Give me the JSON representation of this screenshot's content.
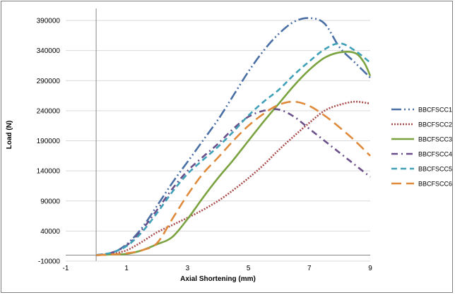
{
  "chart_data": {
    "type": "line",
    "title": "",
    "xlabel": "Axial Shortening (mm)",
    "ylabel": "Load (N)",
    "xlim": [
      -1,
      9
    ],
    "ylim": [
      -10000,
      410000
    ],
    "x_ticks": [
      -1,
      1,
      3,
      5,
      7,
      9
    ],
    "x_tick_labels": [
      "-1",
      "1",
      "3",
      "5",
      "7",
      "9"
    ],
    "y_ticks": [
      -10000,
      40000,
      90000,
      140000,
      190000,
      240000,
      290000,
      340000,
      390000
    ],
    "y_tick_labels": [
      "-10000",
      "40000",
      "90000",
      "140000",
      "190000",
      "240000",
      "290000",
      "340000",
      "390000"
    ],
    "grid": "horizontal",
    "legend_position": "right",
    "series": [
      {
        "name": "BBCFSCC1",
        "color": "#4a6fa5",
        "dash": "longdash-dot-dot",
        "points": [
          [
            0,
            0
          ],
          [
            0.5,
            3000
          ],
          [
            1,
            18000
          ],
          [
            1.5,
            45000
          ],
          [
            2,
            82000
          ],
          [
            2.5,
            120000
          ],
          [
            3,
            155000
          ],
          [
            3.5,
            190000
          ],
          [
            4,
            225000
          ],
          [
            4.5,
            265000
          ],
          [
            5,
            305000
          ],
          [
            5.5,
            340000
          ],
          [
            6,
            368000
          ],
          [
            6.5,
            388000
          ],
          [
            7,
            394000
          ],
          [
            7.5,
            385000
          ],
          [
            8,
            345000
          ],
          [
            8.5,
            320000
          ],
          [
            9,
            295000
          ]
        ]
      },
      {
        "name": "BBCFSCC2",
        "color": "#a94c4c",
        "dash": "dot",
        "points": [
          [
            0,
            0
          ],
          [
            0.5,
            2000
          ],
          [
            1,
            8000
          ],
          [
            1.5,
            22000
          ],
          [
            2,
            38000
          ],
          [
            2.5,
            50000
          ],
          [
            3,
            62000
          ],
          [
            3.5,
            75000
          ],
          [
            4,
            90000
          ],
          [
            4.5,
            108000
          ],
          [
            5,
            128000
          ],
          [
            5.5,
            150000
          ],
          [
            6,
            175000
          ],
          [
            6.5,
            198000
          ],
          [
            7,
            220000
          ],
          [
            7.5,
            240000
          ],
          [
            8,
            250000
          ],
          [
            8.5,
            255000
          ],
          [
            9,
            252000
          ]
        ]
      },
      {
        "name": "BBCFSCC3",
        "color": "#7aa23f",
        "dash": "solid",
        "points": [
          [
            0,
            0
          ],
          [
            0.5,
            1000
          ],
          [
            1,
            2000
          ],
          [
            1.5,
            8000
          ],
          [
            2,
            18000
          ],
          [
            2.5,
            30000
          ],
          [
            3,
            60000
          ],
          [
            3.5,
            95000
          ],
          [
            4,
            128000
          ],
          [
            4.5,
            158000
          ],
          [
            5,
            190000
          ],
          [
            5.5,
            222000
          ],
          [
            6,
            252000
          ],
          [
            6.5,
            282000
          ],
          [
            7,
            308000
          ],
          [
            7.5,
            328000
          ],
          [
            8,
            337000
          ],
          [
            8.5,
            336000
          ],
          [
            8.8,
            320000
          ],
          [
            9,
            298000
          ]
        ]
      },
      {
        "name": "BBCFSCC4",
        "color": "#6b4f8a",
        "dash": "dash-dot",
        "points": [
          [
            0,
            0
          ],
          [
            0.5,
            4000
          ],
          [
            1,
            16000
          ],
          [
            1.5,
            42000
          ],
          [
            2,
            75000
          ],
          [
            2.5,
            110000
          ],
          [
            3,
            140000
          ],
          [
            3.5,
            163000
          ],
          [
            4,
            185000
          ],
          [
            4.5,
            210000
          ],
          [
            5,
            230000
          ],
          [
            5.5,
            240000
          ],
          [
            6,
            242000
          ],
          [
            6.5,
            230000
          ],
          [
            7,
            210000
          ],
          [
            7.5,
            190000
          ],
          [
            8,
            170000
          ],
          [
            8.5,
            150000
          ],
          [
            9,
            130000
          ]
        ]
      },
      {
        "name": "BBCFSCC5",
        "color": "#3fa0b8",
        "dash": "dash",
        "points": [
          [
            0,
            0
          ],
          [
            0.5,
            4000
          ],
          [
            1,
            15000
          ],
          [
            1.5,
            38000
          ],
          [
            2,
            70000
          ],
          [
            2.5,
            105000
          ],
          [
            3,
            135000
          ],
          [
            3.5,
            158000
          ],
          [
            4,
            180000
          ],
          [
            4.5,
            205000
          ],
          [
            5,
            232000
          ],
          [
            5.5,
            255000
          ],
          [
            6,
            275000
          ],
          [
            6.5,
            300000
          ],
          [
            7,
            322000
          ],
          [
            7.5,
            342000
          ],
          [
            8,
            352000
          ],
          [
            8.5,
            340000
          ],
          [
            9,
            320000
          ]
        ]
      },
      {
        "name": "BBCFSCC6",
        "color": "#e08a3c",
        "dash": "longdash",
        "points": [
          [
            0,
            0
          ],
          [
            0.5,
            1000
          ],
          [
            1,
            3000
          ],
          [
            1.5,
            8000
          ],
          [
            2,
            20000
          ],
          [
            2.5,
            60000
          ],
          [
            3,
            100000
          ],
          [
            3.5,
            135000
          ],
          [
            4,
            162000
          ],
          [
            4.5,
            190000
          ],
          [
            5,
            215000
          ],
          [
            5.5,
            235000
          ],
          [
            6,
            250000
          ],
          [
            6.5,
            255000
          ],
          [
            7,
            248000
          ],
          [
            7.5,
            232000
          ],
          [
            8,
            212000
          ],
          [
            8.5,
            190000
          ],
          [
            9,
            165000
          ]
        ]
      }
    ]
  }
}
